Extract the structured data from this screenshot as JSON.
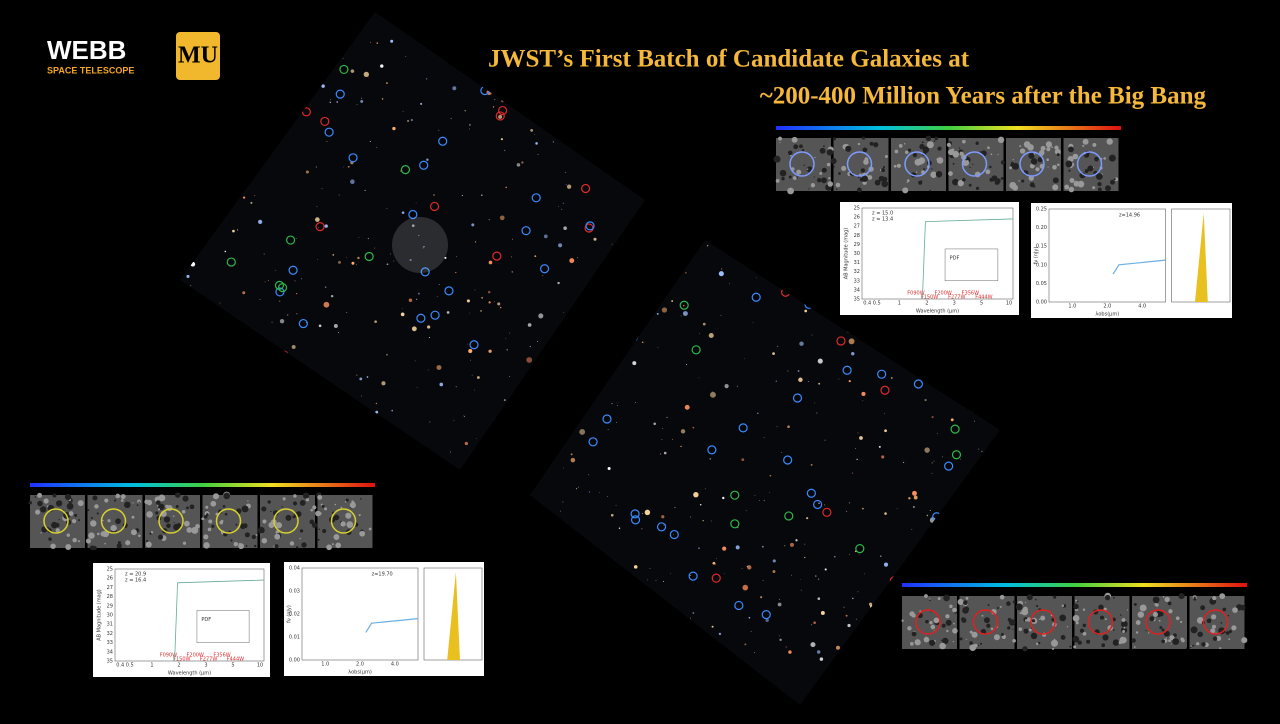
{
  "header": {
    "logo_name": "WEBB",
    "logo_subtitle": "SPACE TELESCOPE",
    "university_logo": "MU",
    "title_lines": [
      "JWST’s First Batch of Candidate Galaxies at",
      "~200-400 Million Years after the Big Bang"
    ]
  },
  "panels": [
    {
      "sed": {
        "legend": [
          "z = 15.0",
          "z = 13.4"
        ],
        "ylabel": "AB Magnitude (mag)",
        "xlabel": "Wavelength (μm)",
        "yticks": [
          "25",
          "26",
          "27",
          "28",
          "29",
          "30",
          "31",
          "32",
          "33",
          "34",
          "35"
        ],
        "xticks": [
          "0.4 0.5",
          "1",
          "2",
          "3",
          "5",
          "10"
        ],
        "filters": [
          "F090W",
          "F150W",
          "F200W",
          "F277W",
          "F356W",
          "F444W"
        ],
        "inset_label": "PDF"
      },
      "pdf": {
        "label": "z=14.96",
        "xlabel": "λobs(μm)",
        "ylabel": "fν (nJy)",
        "xticks": [
          "1.0",
          "2.0",
          "4.0"
        ],
        "yticks": [
          "0.00",
          "0.05",
          "0.10",
          "0.15",
          "0.20",
          "0.25"
        ]
      }
    },
    {
      "sed": {
        "legend": [
          "z = 20.9",
          "z = 16.4"
        ],
        "ylabel": "AB Magnitude (mag)",
        "xlabel": "Wavelength (μm)",
        "yticks": [
          "25",
          "26",
          "27",
          "28",
          "29",
          "30",
          "31",
          "32",
          "33",
          "34",
          "35"
        ],
        "xticks": [
          "0.4 0.5",
          "1",
          "2",
          "3",
          "5",
          "10"
        ],
        "filters": [
          "F090W",
          "F150W",
          "F200W",
          "F277W",
          "F356W",
          "F444W"
        ],
        "inset_label": "PDF"
      },
      "pdf": {
        "label": "z=19.70",
        "xlabel": "λobs(μm)",
        "ylabel": "fν (nJy)",
        "xticks": [
          "1.0",
          "2.0",
          "4.0"
        ],
        "yticks": [
          "0.00",
          "0.01",
          "0.02",
          "0.03",
          "0.04"
        ]
      }
    }
  ]
}
